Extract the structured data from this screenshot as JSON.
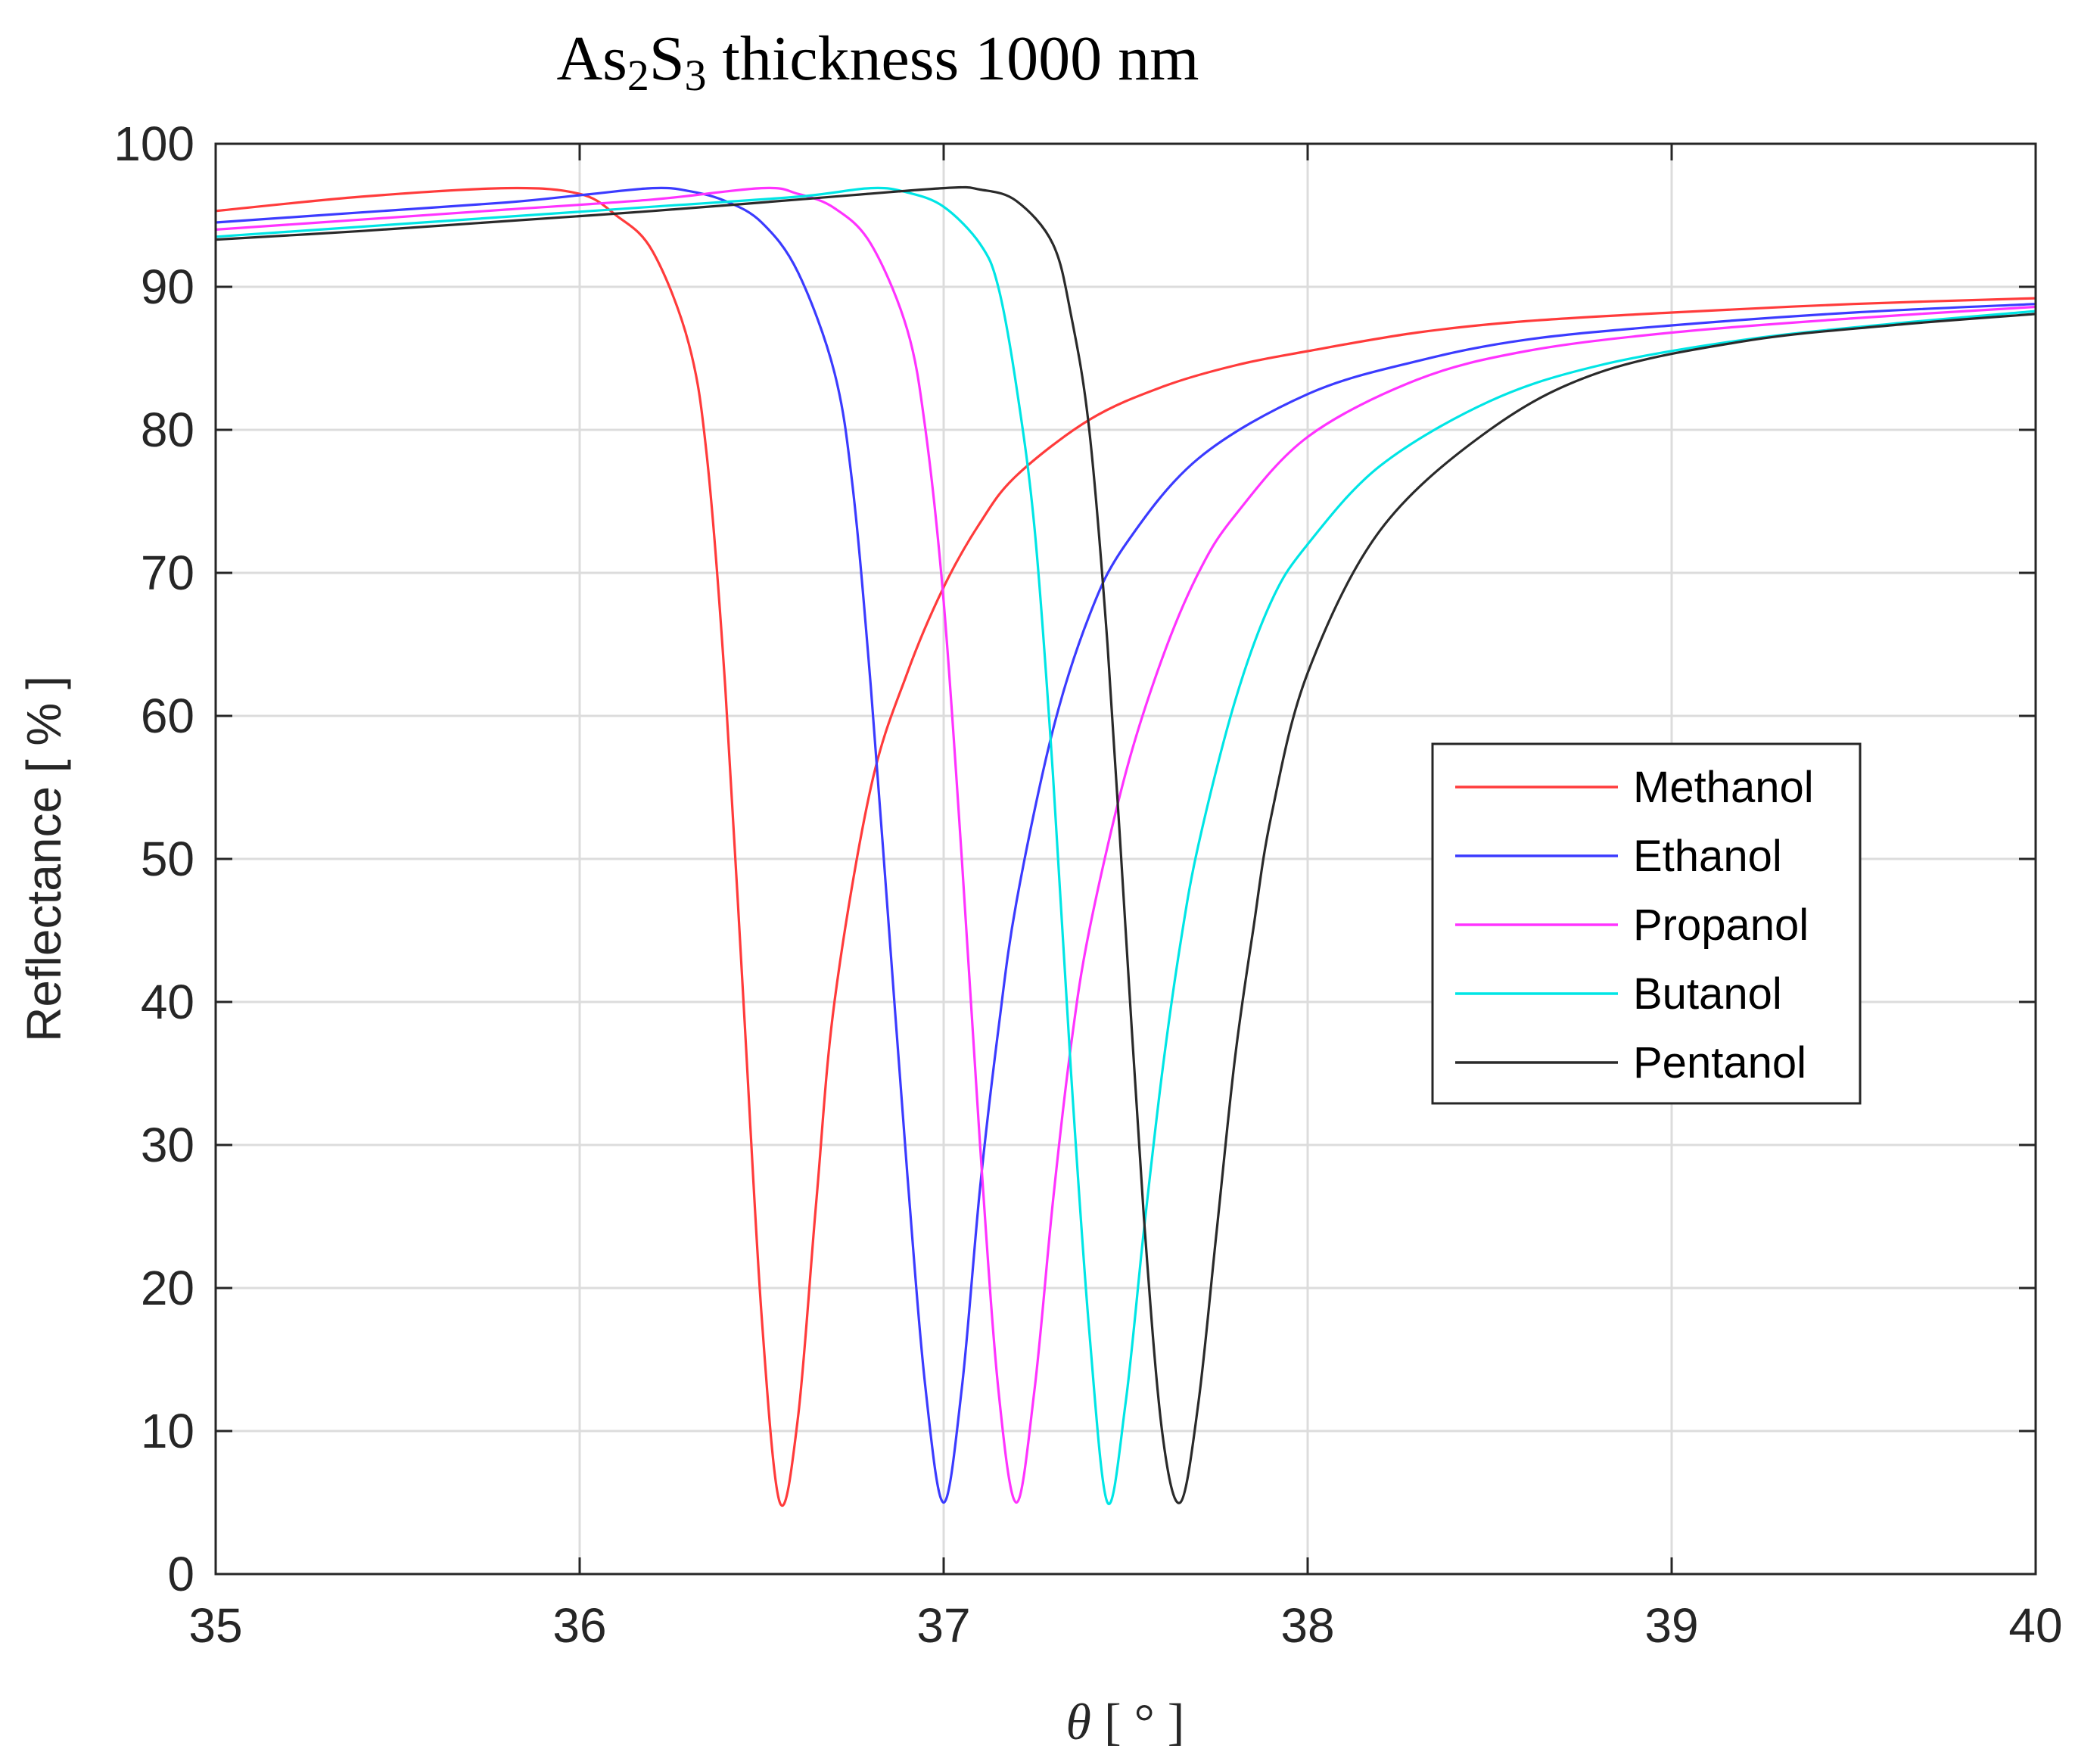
{
  "chart_data": {
    "type": "line",
    "title": {
      "prefix": "As",
      "sub1": "2",
      "mid": "S",
      "sub2": "3",
      "suffix": " thickness 1000 nm"
    },
    "xlabel": {
      "symbol": "θ",
      "unit": " [ ° ]"
    },
    "ylabel": "Reflectance [ % ]",
    "xlim": [
      35,
      40
    ],
    "ylim": [
      0,
      100
    ],
    "xticks": [
      35,
      36,
      37,
      38,
      39,
      40
    ],
    "yticks": [
      0,
      10,
      20,
      30,
      40,
      50,
      60,
      70,
      80,
      90,
      100
    ],
    "grid": true,
    "legend_position": "center-right",
    "series": [
      {
        "name": "Methanol",
        "color": "#ff3b3b",
        "x": [
          35.0,
          35.4,
          35.8,
          36.0,
          36.1,
          36.2,
          36.3,
          36.35,
          36.4,
          36.45,
          36.5,
          36.55,
          36.6,
          36.65,
          36.7,
          36.8,
          36.9,
          37.0,
          37.1,
          37.2,
          37.4,
          37.6,
          37.8,
          38.0,
          38.3,
          38.6,
          39.0,
          39.5,
          40.0
        ],
        "y": [
          95.3,
          96.3,
          96.9,
          96.5,
          95.0,
          92.5,
          86.0,
          78.0,
          62.0,
          40.0,
          18.0,
          5.0,
          11.0,
          26.0,
          40.0,
          55.0,
          63.0,
          69.0,
          73.5,
          76.8,
          80.7,
          83.0,
          84.5,
          85.5,
          86.8,
          87.6,
          88.2,
          88.8,
          89.2
        ]
      },
      {
        "name": "Ethanol",
        "color": "#3b3bff",
        "x": [
          35.0,
          35.4,
          35.8,
          36.0,
          36.2,
          36.3,
          36.4,
          36.5,
          36.6,
          36.7,
          36.75,
          36.8,
          36.85,
          36.9,
          36.95,
          37.0,
          37.05,
          37.1,
          37.15,
          37.2,
          37.3,
          37.4,
          37.5,
          37.7,
          38.0,
          38.3,
          38.6,
          39.0,
          39.5,
          40.0
        ],
        "y": [
          94.5,
          95.2,
          95.9,
          96.4,
          96.9,
          96.7,
          96.0,
          94.5,
          91.0,
          84.0,
          76.0,
          62.0,
          45.0,
          28.0,
          13.0,
          5.0,
          13.0,
          27.0,
          38.0,
          47.0,
          59.0,
          67.0,
          72.0,
          78.0,
          82.5,
          84.8,
          86.3,
          87.3,
          88.2,
          88.8
        ]
      },
      {
        "name": "Propanol",
        "color": "#ff33ff",
        "x": [
          35.0,
          35.4,
          35.8,
          36.2,
          36.5,
          36.6,
          36.7,
          36.8,
          36.9,
          36.95,
          37.0,
          37.05,
          37.1,
          37.15,
          37.2,
          37.25,
          37.3,
          37.35,
          37.4,
          37.5,
          37.6,
          37.7,
          37.8,
          38.0,
          38.3,
          38.6,
          39.0,
          39.5,
          40.0
        ],
        "y": [
          94.0,
          94.7,
          95.4,
          96.1,
          96.9,
          96.5,
          95.5,
          93.0,
          87.0,
          80.0,
          68.0,
          50.0,
          30.0,
          13.0,
          5.0,
          13.0,
          26.0,
          37.0,
          45.0,
          56.0,
          64.0,
          70.0,
          74.0,
          79.5,
          83.5,
          85.5,
          86.8,
          87.8,
          88.6
        ]
      },
      {
        "name": "Butanol",
        "color": "#00e5e5",
        "x": [
          35.0,
          35.4,
          35.8,
          36.2,
          36.6,
          36.8,
          36.9,
          37.0,
          37.1,
          37.15,
          37.2,
          37.25,
          37.3,
          37.35,
          37.4,
          37.45,
          37.5,
          37.55,
          37.6,
          37.65,
          37.7,
          37.8,
          37.9,
          38.0,
          38.2,
          38.5,
          38.8,
          39.2,
          39.6,
          40.0
        ],
        "y": [
          93.5,
          94.2,
          94.9,
          95.6,
          96.3,
          96.9,
          96.6,
          95.6,
          93.0,
          90.0,
          83.0,
          73.0,
          56.0,
          35.0,
          17.0,
          5.0,
          12.0,
          24.0,
          35.0,
          44.0,
          51.0,
          61.0,
          68.0,
          72.0,
          77.5,
          82.0,
          84.5,
          86.3,
          87.4,
          88.3
        ]
      },
      {
        "name": "Pentanol",
        "color": "#2a2a2a",
        "x": [
          35.0,
          35.4,
          35.8,
          36.2,
          36.6,
          37.0,
          37.1,
          37.2,
          37.3,
          37.35,
          37.4,
          37.45,
          37.5,
          37.55,
          37.6,
          37.65,
          37.7,
          37.75,
          37.8,
          37.85,
          37.9,
          38.0,
          38.2,
          38.5,
          38.8,
          39.2,
          39.6,
          40.0
        ],
        "y": [
          93.3,
          93.9,
          94.6,
          95.3,
          96.1,
          96.9,
          96.8,
          96.0,
          93.0,
          88.0,
          80.0,
          65.0,
          45.0,
          25.0,
          10.0,
          5.0,
          12.0,
          24.0,
          36.0,
          45.0,
          53.0,
          63.0,
          73.0,
          80.0,
          84.0,
          86.2,
          87.3,
          88.1
        ]
      }
    ]
  }
}
